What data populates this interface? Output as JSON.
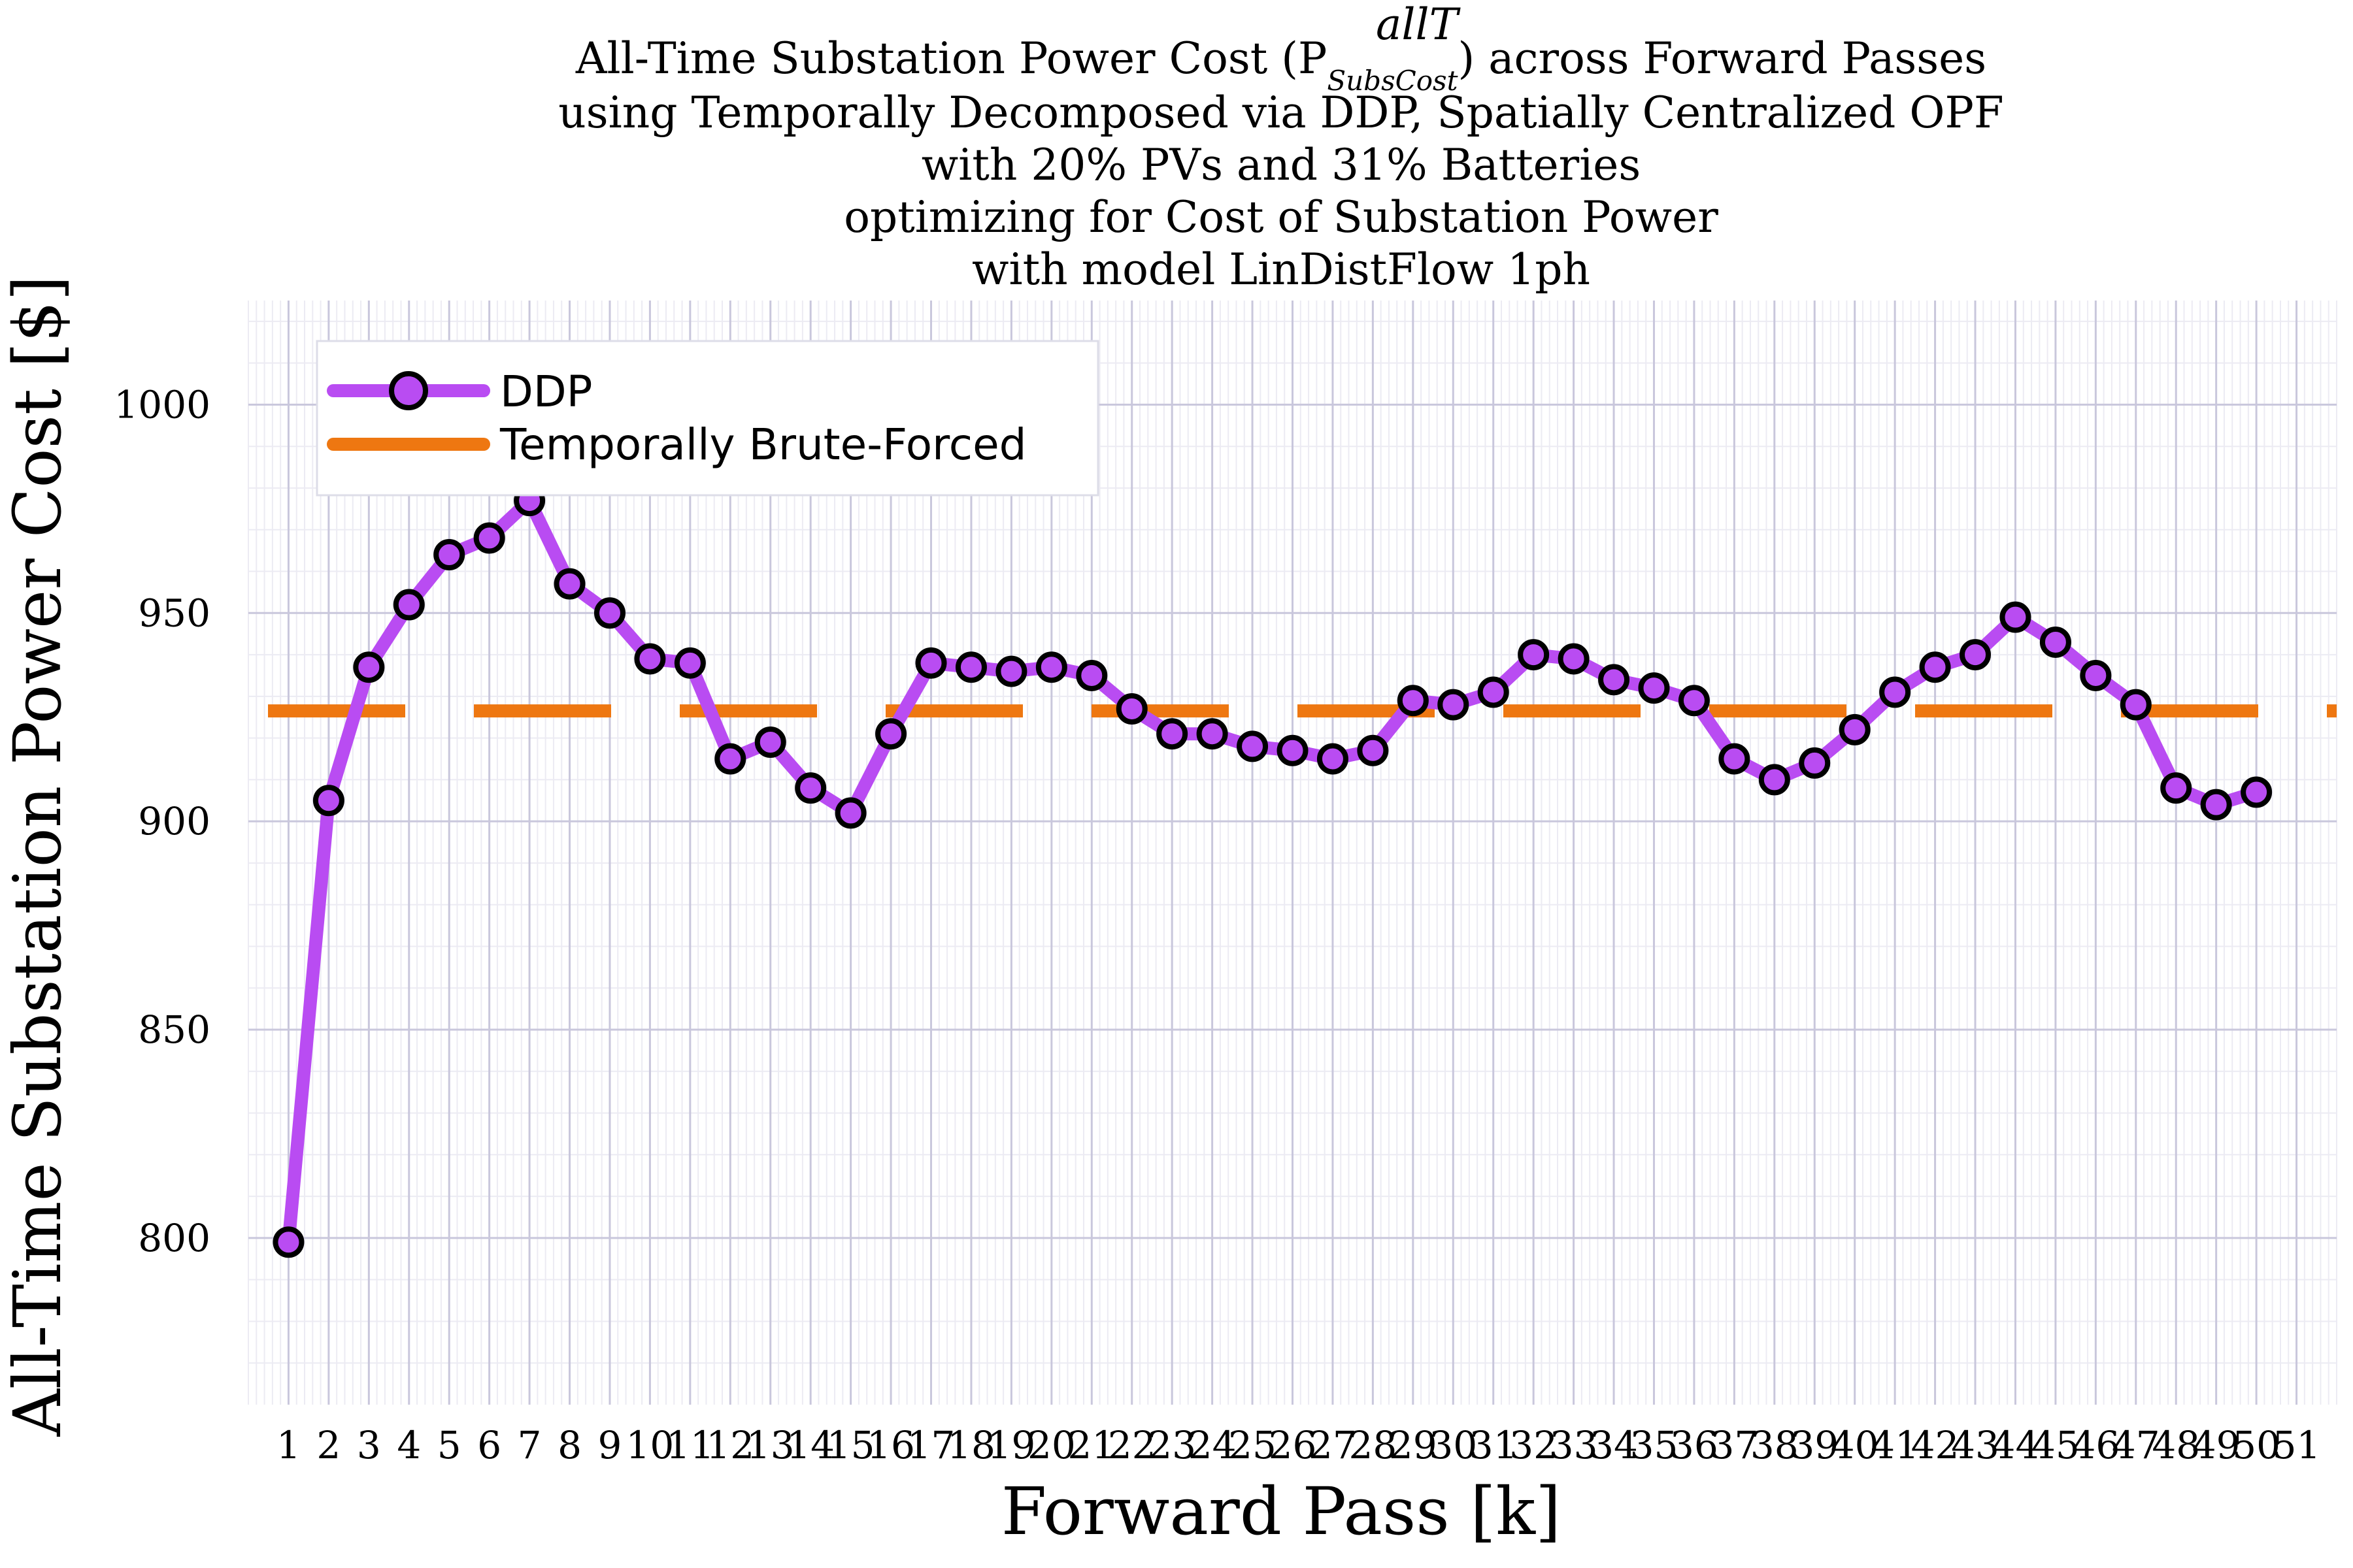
{
  "chart_data": {
    "type": "line",
    "title_lines": [
      "All-Time Substation Power Cost (P",
      "using Temporally Decomposed via DDP, Spatially Centralized OPF",
      "with 20% PVs and 31% Batteries",
      "optimizing for Cost of Substation Power",
      "with model LinDistFlow 1ph"
    ],
    "title_symbol_sup": "allT",
    "title_symbol_sub": "SubsCost",
    "title_line1_suffix": ") across Forward Passes",
    "xlabel": "Forward Pass [k]",
    "ylabel": "All-Time Substation Power Cost [$]",
    "xlim": [
      0,
      52
    ],
    "ylim": [
      760,
      1025
    ],
    "x_ticks": [
      1,
      2,
      3,
      4,
      5,
      6,
      7,
      8,
      9,
      10,
      11,
      12,
      13,
      14,
      15,
      16,
      17,
      18,
      19,
      20,
      21,
      22,
      23,
      24,
      25,
      26,
      27,
      28,
      29,
      30,
      31,
      32,
      33,
      34,
      35,
      36,
      37,
      38,
      39,
      40,
      41,
      42,
      43,
      44,
      45,
      46,
      47,
      48,
      49,
      50,
      51
    ],
    "y_ticks": [
      800,
      850,
      900,
      950,
      1000
    ],
    "grid": true,
    "legend_position": "top-left",
    "series": [
      {
        "name": "DDP",
        "color": "#b94cf2",
        "marker": "circle",
        "x": [
          1,
          2,
          3,
          4,
          5,
          6,
          7,
          8,
          9,
          10,
          11,
          12,
          13,
          14,
          15,
          16,
          17,
          18,
          19,
          20,
          21,
          22,
          23,
          24,
          25,
          26,
          27,
          28,
          29,
          30,
          31,
          32,
          33,
          34,
          35,
          36,
          37,
          38,
          39,
          40,
          41,
          42,
          43,
          44,
          45,
          46,
          47,
          48,
          49,
          50
        ],
        "values": [
          799,
          905,
          937,
          952,
          964,
          968,
          977,
          957,
          950,
          939,
          938,
          915,
          919,
          908,
          902,
          921,
          938,
          937,
          936,
          937,
          935,
          927,
          921,
          921,
          918,
          917,
          915,
          917,
          929,
          928,
          931,
          940,
          939,
          934,
          932,
          929,
          915,
          910,
          914,
          922,
          931,
          937,
          940,
          949,
          943,
          935,
          928,
          908,
          904,
          907
        ]
      },
      {
        "name": "Temporally Brute-Forced",
        "color": "#ee7711",
        "style": "dashed",
        "x": [
          0,
          52
        ],
        "values": [
          926.5,
          926.5
        ]
      }
    ]
  }
}
